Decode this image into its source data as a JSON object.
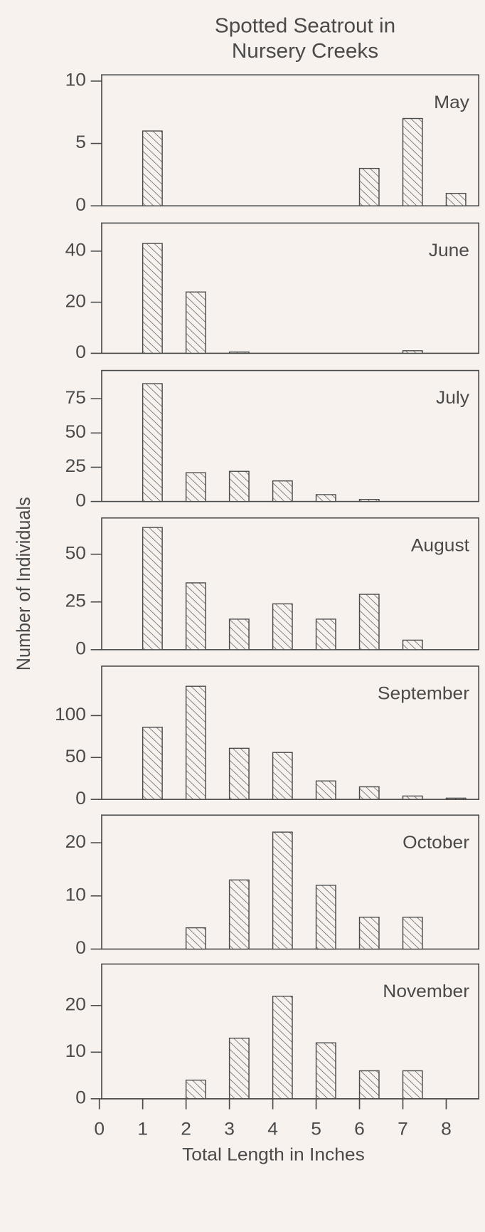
{
  "figure": {
    "title": [
      "Spotted Seatrout in",
      "Nursery Creeks"
    ],
    "ylabel": "Number of Individuals"
  },
  "chart_data": [
    {
      "type": "bar",
      "title": "May",
      "x": [
        1,
        6,
        7,
        8
      ],
      "values": [
        6,
        3,
        7,
        1
      ],
      "xlim": [
        0,
        8.75
      ],
      "ylim": [
        0,
        10.5
      ],
      "yticks": [
        0,
        5,
        10
      ]
    },
    {
      "type": "bar",
      "title": "June",
      "x": [
        1,
        2,
        3,
        7
      ],
      "values": [
        43,
        24,
        0.5,
        1
      ],
      "xlim": [
        0,
        8.75
      ],
      "ylim": [
        0,
        51
      ],
      "yticks": [
        0,
        20,
        40
      ]
    },
    {
      "type": "bar",
      "title": "July",
      "x": [
        1,
        2,
        3,
        4,
        5,
        6
      ],
      "values": [
        86,
        21,
        22,
        15,
        5,
        1.5
      ],
      "xlim": [
        0,
        8.75
      ],
      "ylim": [
        0,
        95.6
      ],
      "yticks": [
        0,
        25,
        50,
        75
      ]
    },
    {
      "type": "bar",
      "title": "August",
      "x": [
        1,
        2,
        3,
        4,
        5,
        6,
        7
      ],
      "values": [
        64,
        35,
        16,
        24,
        16,
        29,
        5
      ],
      "xlim": [
        0,
        8.75
      ],
      "ylim": [
        0,
        69
      ],
      "yticks": [
        0,
        25,
        50
      ]
    },
    {
      "type": "bar",
      "title": "September",
      "x": [
        1,
        2,
        3,
        4,
        5,
        6,
        7,
        8
      ],
      "values": [
        86,
        135,
        61,
        56,
        22,
        15,
        4,
        1.5
      ],
      "xlim": [
        0,
        8.75
      ],
      "ylim": [
        0,
        159
      ],
      "yticks": [
        0,
        50,
        100
      ]
    },
    {
      "type": "bar",
      "title": "October",
      "x": [
        2,
        3,
        4,
        5,
        6,
        7
      ],
      "values": [
        4,
        13,
        22,
        12,
        6,
        6
      ],
      "xlim": [
        0,
        8.75
      ],
      "ylim": [
        0,
        25.2
      ],
      "yticks": [
        0,
        10,
        20
      ]
    },
    {
      "type": "bar",
      "title": "November",
      "x": [
        2,
        3,
        4,
        5,
        6,
        7
      ],
      "values": [
        4,
        13,
        22,
        12,
        6,
        6
      ],
      "xlim": [
        0,
        8.75
      ],
      "ylim": [
        0,
        28.9
      ],
      "yticks": [
        0,
        10,
        20
      ],
      "xlabel": "Total Length in Inches",
      "xticks": [
        0,
        1,
        2,
        3,
        4,
        5,
        6,
        7,
        8
      ]
    }
  ]
}
